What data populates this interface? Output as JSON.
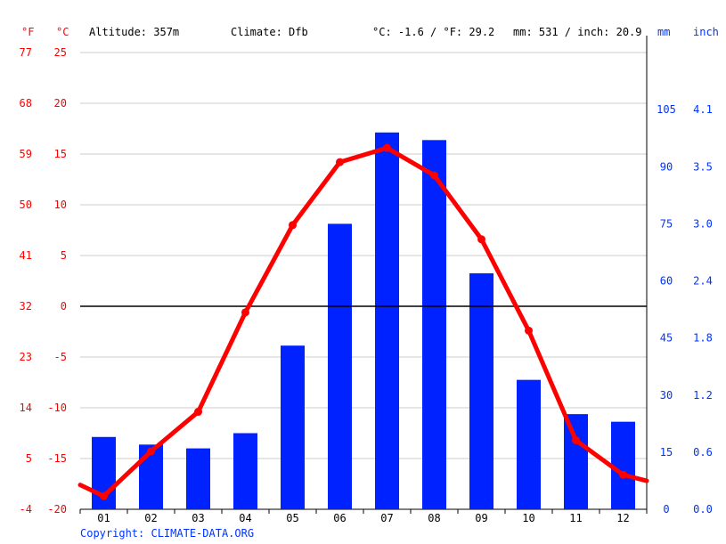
{
  "header": {
    "unit_f": "°F",
    "unit_c": "°C",
    "altitude": "Altitude: 357m",
    "climate": "Climate: Dfb",
    "temp_avg": "°C: -1.6 / °F: 29.2",
    "precip_total": "mm: 531 / inch: 20.9",
    "unit_mm": "mm",
    "unit_inch": "inch"
  },
  "footer": {
    "copyright": "Copyright: CLIMATE-DATA.ORG"
  },
  "colors": {
    "temperature": "#ff0000",
    "precipitation": "#0022ff",
    "grid": "#cccccc",
    "zero_line": "#000000"
  },
  "chart_data": {
    "type": "bar",
    "categories": [
      "01",
      "02",
      "03",
      "04",
      "05",
      "06",
      "07",
      "08",
      "09",
      "10",
      "11",
      "12"
    ],
    "series": [
      {
        "kind": "bar",
        "unit": "mm",
        "axis": "right",
        "values": [
          19,
          17,
          16,
          20,
          43,
          75,
          99,
          97,
          62,
          34,
          25,
          23
        ]
      },
      {
        "kind": "line",
        "unit": "°C",
        "axis": "left",
        "values": [
          -18.7,
          -14.3,
          -10.4,
          -0.6,
          8.0,
          14.2,
          15.6,
          12.9,
          6.6,
          -2.4,
          -13.2,
          -16.6
        ]
      }
    ],
    "left_axis": {
      "celsius_ticks": [
        "25",
        "20",
        "15",
        "10",
        "5",
        "0",
        "-5",
        "-10",
        "-15",
        "-20"
      ],
      "fahrenheit_ticks": [
        "77",
        "68",
        "59",
        "50",
        "41",
        "32",
        "23",
        "14",
        "5",
        "-4"
      ],
      "ylim": [
        -20,
        25
      ]
    },
    "right_axis": {
      "mm_ticks": [
        "105",
        "90",
        "75",
        "60",
        "45",
        "30",
        "15",
        "0"
      ],
      "inch_ticks": [
        "4.1",
        "3.5",
        "3.0",
        "2.4",
        "1.8",
        "1.2",
        "0.6",
        "0.0"
      ],
      "ylim_mm": [
        0,
        120
      ]
    },
    "grid": true,
    "legend": "none"
  }
}
